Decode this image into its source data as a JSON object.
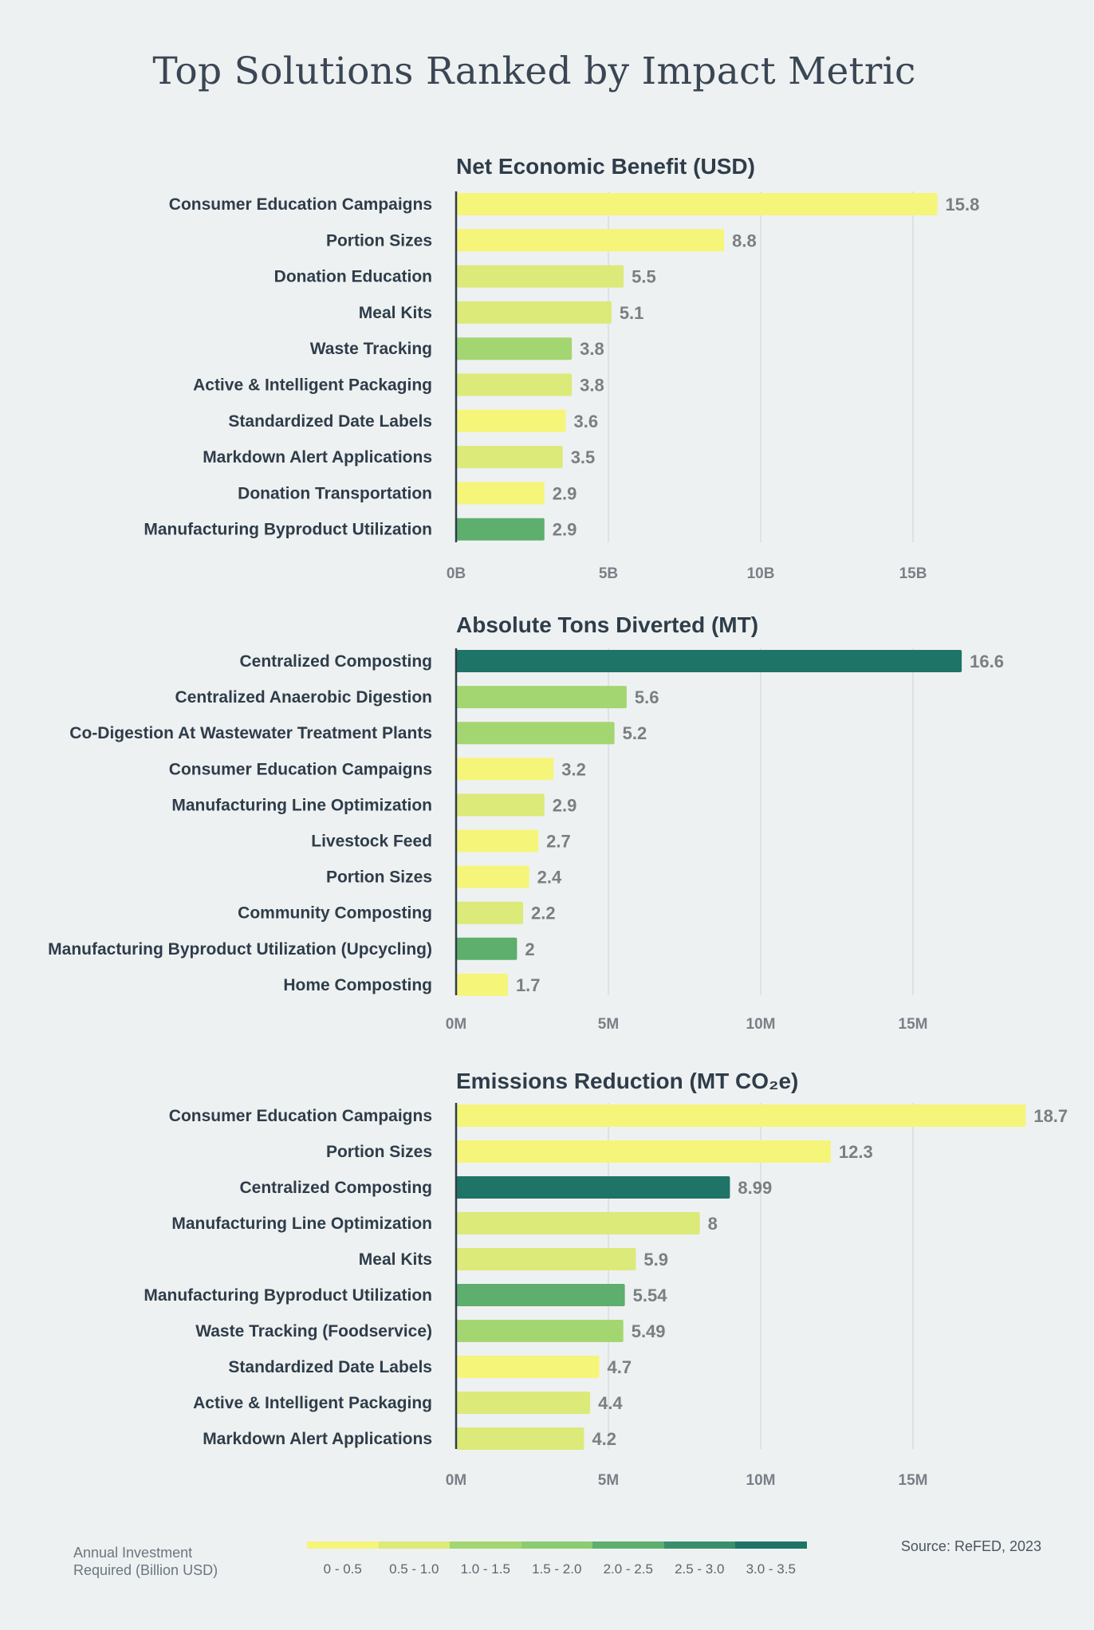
{
  "title": "Top Solutions Ranked by Impact Metric",
  "colors": {
    "bin0": "#f5f57a",
    "bin1": "#dbea78",
    "bin2": "#a3d670",
    "bin3": "#8ccc70",
    "bin4": "#5eae6e",
    "bin5": "#3a8e6c",
    "bin6": "#1e7466"
  },
  "chart_data": [
    {
      "type": "bar",
      "orientation": "horizontal",
      "title": "Net Economic Benefit (USD)",
      "categories": [
        "Consumer Education Campaigns",
        "Portion Sizes",
        "Donation Education",
        "Meal Kits",
        "Waste Tracking",
        "Active & Intelligent Packaging",
        "Standardized Date Labels",
        "Markdown Alert Applications",
        "Donation Transportation",
        "Manufacturing Byproduct Utilization"
      ],
      "values": [
        15.8,
        8.8,
        5.5,
        5.1,
        3.8,
        3.8,
        3.6,
        3.5,
        2.9,
        2.9
      ],
      "value_labels": [
        "15.8",
        "8.8",
        "5.5",
        "5.1",
        "3.8",
        "3.8",
        "3.6",
        "3.5",
        "2.9",
        "2.9"
      ],
      "investment_bins": [
        "0 - 0.5",
        "0 - 0.5",
        "0.5 - 1.0",
        "0.5 - 1.0",
        "1.0 - 1.5",
        "0.5 - 1.0",
        "0 - 0.5",
        "0.5 - 1.0",
        "0 - 0.5",
        "2.0 - 2.5"
      ],
      "xticks": [
        "0B",
        "5B",
        "10B",
        "15B"
      ],
      "xtick_values": [
        0,
        5,
        10,
        15
      ],
      "xlim": [
        0,
        19
      ],
      "grid": true
    },
    {
      "type": "bar",
      "orientation": "horizontal",
      "title": "Absolute Tons Diverted (MT)",
      "categories": [
        "Centralized Composting",
        "Centralized Anaerobic Digestion",
        "Co-Digestion At Wastewater Treatment Plants",
        "Consumer Education Campaigns",
        "Manufacturing Line Optimization",
        "Livestock Feed",
        "Portion Sizes",
        "Community Composting",
        "Manufacturing Byproduct Utilization (Upcycling)",
        "Home Composting"
      ],
      "values": [
        16.6,
        5.6,
        5.2,
        3.2,
        2.9,
        2.7,
        2.4,
        2.2,
        2.0,
        1.7
      ],
      "value_labels": [
        "16.6",
        "5.6",
        "5.2",
        "3.2",
        "2.9",
        "2.7",
        "2.4",
        "2.2",
        "2",
        "1.7"
      ],
      "investment_bins": [
        "3.0 - 3.5",
        "1.0 - 1.5",
        "1.0 - 1.5",
        "0 - 0.5",
        "0.5 - 1.0",
        "0 - 0.5",
        "0 - 0.5",
        "0.5 - 1.0",
        "2.0 - 2.5",
        "0 - 0.5"
      ],
      "xticks": [
        "0M",
        "5M",
        "10M",
        "15M"
      ],
      "xtick_values": [
        0,
        5,
        10,
        15
      ],
      "xlim": [
        0,
        19
      ],
      "grid": true
    },
    {
      "type": "bar",
      "orientation": "horizontal",
      "title": "Emissions Reduction (MT CO₂e)",
      "categories": [
        "Consumer Education Campaigns",
        "Portion Sizes",
        "Centralized Composting",
        "Manufacturing Line Optimization",
        "Meal Kits",
        "Manufacturing Byproduct Utilization",
        "Waste Tracking (Foodservice)",
        "Standardized Date Labels",
        "Active & Intelligent Packaging",
        "Markdown Alert Applications"
      ],
      "values": [
        18.7,
        12.3,
        8.99,
        8,
        5.9,
        5.54,
        5.49,
        4.7,
        4.4,
        4.2
      ],
      "value_labels": [
        "18.7",
        "12.3",
        "8.99",
        "8",
        "5.9",
        "5.54",
        "5.49",
        "4.7",
        "4.4",
        "4.2"
      ],
      "investment_bins": [
        "0 - 0.5",
        "0 - 0.5",
        "3.0 - 3.5",
        "0.5 - 1.0",
        "0.5 - 1.0",
        "2.0 - 2.5",
        "1.0 - 1.5",
        "0 - 0.5",
        "0.5 - 1.0",
        "0.5 - 1.0"
      ],
      "xticks": [
        "0M",
        "5M",
        "10M",
        "15M"
      ],
      "xtick_values": [
        0,
        5,
        10,
        15
      ],
      "xlim": [
        0,
        19
      ],
      "grid": true
    }
  ],
  "legend": {
    "title_line1": "Annual Investment",
    "title_line2": "Required (Billion USD)",
    "bins": [
      "0 - 0.5",
      "0.5 - 1.0",
      "1.0 - 1.5",
      "1.5 - 2.0",
      "2.0 - 2.5",
      "2.5 - 3.0",
      "3.0 - 3.5"
    ]
  },
  "source": "Source: ReFED, 2023"
}
